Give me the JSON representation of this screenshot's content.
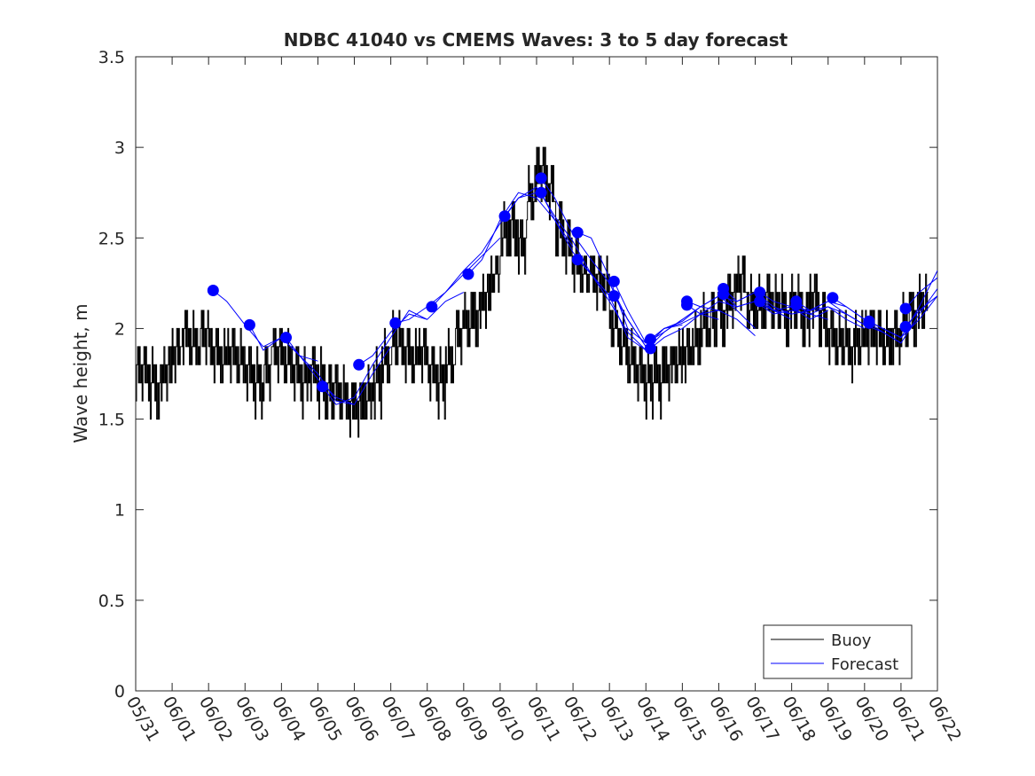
{
  "chart_data": {
    "type": "line",
    "title": "NDBC 41040 vs CMEMS Waves: 3 to 5 day forecast",
    "ylabel": "Wave height, m",
    "xlabel": "",
    "ylim": [
      0,
      3.5
    ],
    "yticks": [
      "0",
      "0.5",
      "1",
      "1.5",
      "2",
      "2.5",
      "3",
      "3.5"
    ],
    "xticks": [
      "05/31",
      "06/01",
      "06/02",
      "06/03",
      "06/04",
      "06/05",
      "06/06",
      "06/07",
      "06/08",
      "06/09",
      "06/10",
      "06/11",
      "06/12",
      "06/13",
      "06/14",
      "06/15",
      "06/16",
      "06/17",
      "06/18",
      "06/19",
      "06/20",
      "06/21",
      "06/22"
    ],
    "x_unit": "date (MM/DD), daily ticks",
    "grid": false,
    "legend": {
      "position": "bottom-right",
      "entries": [
        "Buoy",
        "Forecast"
      ]
    },
    "colors": {
      "Buoy": "#000000",
      "Forecast": "#0000ff"
    },
    "series": [
      {
        "name": "Buoy",
        "x": [
          "05/31 00:00",
          "05/31 06:00",
          "05/31 12:00",
          "05/31 18:00",
          "06/01 00:00",
          "06/01 06:00",
          "06/01 12:00",
          "06/01 18:00",
          "06/02 00:00",
          "06/02 06:00",
          "06/02 12:00",
          "06/02 18:00",
          "06/03 00:00",
          "06/03 06:00",
          "06/03 12:00",
          "06/03 18:00",
          "06/04 00:00",
          "06/04 06:00",
          "06/04 12:00",
          "06/04 18:00",
          "06/05 00:00",
          "06/05 06:00",
          "06/05 12:00",
          "06/05 18:00",
          "06/06 00:00",
          "06/06 06:00",
          "06/06 12:00",
          "06/06 18:00",
          "06/07 00:00",
          "06/07 06:00",
          "06/07 12:00",
          "06/07 18:00",
          "06/08 00:00",
          "06/08 06:00",
          "06/08 12:00",
          "06/08 18:00",
          "06/09 00:00",
          "06/09 06:00",
          "06/09 12:00",
          "06/09 18:00",
          "06/10 00:00",
          "06/10 06:00",
          "06/10 12:00",
          "06/10 18:00",
          "06/11 00:00",
          "06/11 06:00",
          "06/11 12:00",
          "06/11 18:00",
          "06/12 00:00",
          "06/12 06:00",
          "06/12 12:00",
          "06/12 18:00",
          "06/13 00:00",
          "06/13 06:00",
          "06/13 12:00",
          "06/13 18:00",
          "06/14 00:00",
          "06/14 06:00",
          "06/14 12:00",
          "06/14 18:00",
          "06/15 00:00",
          "06/15 06:00",
          "06/15 12:00",
          "06/15 18:00",
          "06/16 00:00",
          "06/16 06:00",
          "06/16 12:00",
          "06/16 18:00",
          "06/17 00:00",
          "06/17 06:00",
          "06/17 12:00",
          "06/17 18:00",
          "06/18 00:00",
          "06/18 06:00",
          "06/18 12:00",
          "06/18 18:00",
          "06/19 00:00",
          "06/19 06:00",
          "06/19 12:00",
          "06/19 18:00",
          "06/20 00:00",
          "06/20 06:00",
          "06/20 12:00",
          "06/20 18:00",
          "06/21 00:00",
          "06/21 06:00",
          "06/21 12:00"
        ],
        "values": [
          1.75,
          1.7,
          1.65,
          1.75,
          1.85,
          1.95,
          1.9,
          1.95,
          1.85,
          1.8,
          1.85,
          1.8,
          1.75,
          1.7,
          1.75,
          1.85,
          1.8,
          1.75,
          1.7,
          1.75,
          1.7,
          1.65,
          1.6,
          1.55,
          1.55,
          1.6,
          1.7,
          1.8,
          1.9,
          1.85,
          1.8,
          1.85,
          1.75,
          1.7,
          1.8,
          1.95,
          2.0,
          2.05,
          2.15,
          2.3,
          2.5,
          2.55,
          2.45,
          2.7,
          2.85,
          2.75,
          2.55,
          2.45,
          2.35,
          2.3,
          2.25,
          2.2,
          2.0,
          1.9,
          1.8,
          1.75,
          1.7,
          1.7,
          1.75,
          1.8,
          1.85,
          1.9,
          2.0,
          2.05,
          2.05,
          2.15,
          2.25,
          2.1,
          2.1,
          2.15,
          2.1,
          2.05,
          2.1,
          2.05,
          2.15,
          2.05,
          1.95,
          1.9,
          1.85,
          1.9,
          1.95,
          1.95,
          1.9,
          1.95,
          2.0,
          2.05,
          2.1
        ]
      },
      {
        "name": "Forecast",
        "runs": [
          {
            "x": [
              "06/02 03:00",
              "06/02 12:00",
              "06/03 00:00",
              "06/03 12:00",
              "06/04 00:00",
              "06/04 12:00",
              "06/05 00:00"
            ],
            "values": [
              2.21,
              2.15,
              2.02,
              1.9,
              1.95,
              1.85,
              1.82
            ]
          },
          {
            "x": [
              "06/03 03:00",
              "06/03 12:00",
              "06/04 00:00",
              "06/04 12:00",
              "06/05 00:00",
              "06/05 12:00",
              "06/06 00:00"
            ],
            "values": [
              2.02,
              1.88,
              1.95,
              1.85,
              1.72,
              1.62,
              1.58
            ]
          },
          {
            "x": [
              "06/04 03:00",
              "06/04 12:00",
              "06/05 00:00",
              "06/05 12:00",
              "06/06 00:00",
              "06/06 12:00",
              "06/07 00:00"
            ],
            "values": [
              1.95,
              1.85,
              1.75,
              1.6,
              1.58,
              1.75,
              1.9
            ]
          },
          {
            "x": [
              "06/05 03:00",
              "06/05 12:00",
              "06/06 00:00",
              "06/06 12:00",
              "06/07 00:00",
              "06/07 12:00",
              "06/08 00:00"
            ],
            "values": [
              1.68,
              1.58,
              1.62,
              1.8,
              1.95,
              2.1,
              2.05
            ]
          },
          {
            "x": [
              "06/06 03:00",
              "06/06 12:00",
              "06/07 00:00",
              "06/07 12:00",
              "06/08 00:00",
              "06/08 12:00",
              "06/09 00:00"
            ],
            "values": [
              1.8,
              1.85,
              1.98,
              2.08,
              2.05,
              2.15,
              2.2
            ]
          },
          {
            "x": [
              "06/07 03:00",
              "06/07 12:00",
              "06/08 00:00",
              "06/08 12:00",
              "06/09 00:00",
              "06/09 12:00",
              "06/10 00:00"
            ],
            "values": [
              2.03,
              2.05,
              2.12,
              2.2,
              2.3,
              2.4,
              2.5
            ]
          },
          {
            "x": [
              "06/08 03:00",
              "06/08 12:00",
              "06/09 00:00",
              "06/09 12:00",
              "06/10 00:00",
              "06/10 12:00",
              "06/11 00:00"
            ],
            "values": [
              2.12,
              2.2,
              2.32,
              2.42,
              2.58,
              2.72,
              2.75
            ]
          },
          {
            "x": [
              "06/09 03:00",
              "06/09 12:00",
              "06/10 00:00",
              "06/10 12:00",
              "06/11 00:00",
              "06/11 12:00",
              "06/12 00:00"
            ],
            "values": [
              2.3,
              2.38,
              2.6,
              2.75,
              2.72,
              2.6,
              2.45
            ]
          },
          {
            "x": [
              "06/10 03:00",
              "06/10 12:00",
              "06/11 00:00",
              "06/11 12:00",
              "06/12 00:00",
              "06/12 12:00",
              "06/13 00:00"
            ],
            "values": [
              2.62,
              2.72,
              2.78,
              2.62,
              2.48,
              2.3,
              2.18
            ]
          },
          {
            "x": [
              "06/11 03:00",
              "06/11 12:00",
              "06/12 00:00",
              "06/12 12:00",
              "06/13 00:00",
              "06/13 12:00",
              "06/14 00:00"
            ],
            "values": [
              2.83,
              2.72,
              2.52,
              2.38,
              2.25,
              2.05,
              1.9
            ]
          },
          {
            "x": [
              "06/11 03:00",
              "06/11 12:00",
              "06/12 00:00",
              "06/12 12:00",
              "06/13 00:00",
              "06/13 12:00",
              "06/14 00:00"
            ],
            "values": [
              2.75,
              2.6,
              2.42,
              2.3,
              2.15,
              1.98,
              1.88
            ]
          },
          {
            "x": [
              "06/12 03:00",
              "06/12 12:00",
              "06/13 00:00",
              "06/13 12:00",
              "06/14 00:00",
              "06/14 12:00",
              "06/15 00:00"
            ],
            "values": [
              2.53,
              2.5,
              2.28,
              2.0,
              1.92,
              2.0,
              2.02
            ]
          },
          {
            "x": [
              "06/12 03:00",
              "06/12 12:00",
              "06/13 00:00",
              "06/13 12:00",
              "06/14 00:00",
              "06/14 12:00",
              "06/15 00:00"
            ],
            "values": [
              2.38,
              2.3,
              2.18,
              1.95,
              1.88,
              1.98,
              2.05
            ]
          },
          {
            "x": [
              "06/13 03:00",
              "06/13 12:00",
              "06/14 00:00",
              "06/14 12:00",
              "06/15 00:00",
              "06/15 12:00",
              "06/16 00:00"
            ],
            "values": [
              2.26,
              2.1,
              1.92,
              1.98,
              2.05,
              2.12,
              2.1
            ]
          },
          {
            "x": [
              "06/13 03:00",
              "06/13 12:00",
              "06/14 00:00",
              "06/14 12:00",
              "06/15 00:00",
              "06/15 12:00",
              "06/16 00:00"
            ],
            "values": [
              2.18,
              2.05,
              1.9,
              2.0,
              2.03,
              2.08,
              2.05
            ]
          },
          {
            "x": [
              "06/14 03:00",
              "06/14 12:00",
              "06/15 00:00",
              "06/15 12:00",
              "06/16 00:00",
              "06/16 12:00",
              "06/17 00:00"
            ],
            "values": [
              1.94,
              2.0,
              2.04,
              2.12,
              2.18,
              2.1,
              2.0
            ]
          },
          {
            "x": [
              "06/14 03:00",
              "06/14 12:00",
              "06/15 00:00",
              "06/15 12:00",
              "06/16 00:00",
              "06/16 12:00",
              "06/17 00:00"
            ],
            "values": [
              1.89,
              1.95,
              2.0,
              2.08,
              2.1,
              2.05,
              1.96
            ]
          },
          {
            "x": [
              "06/15 03:00",
              "06/15 12:00",
              "06/16 00:00",
              "06/16 12:00",
              "06/17 00:00",
              "06/17 12:00",
              "06/18 00:00"
            ],
            "values": [
              2.15,
              2.12,
              2.18,
              2.15,
              2.2,
              2.12,
              2.08
            ]
          },
          {
            "x": [
              "06/15 03:00",
              "06/15 12:00",
              "06/16 00:00",
              "06/16 12:00",
              "06/17 00:00",
              "06/17 12:00",
              "06/18 00:00"
            ],
            "values": [
              2.13,
              2.08,
              2.15,
              2.12,
              2.15,
              2.1,
              2.05
            ]
          },
          {
            "x": [
              "06/16 03:00",
              "06/16 12:00",
              "06/17 00:00",
              "06/17 12:00",
              "06/18 00:00",
              "06/18 12:00",
              "06/19 00:00"
            ],
            "values": [
              2.22,
              2.15,
              2.2,
              2.1,
              2.12,
              2.05,
              2.1
            ]
          },
          {
            "x": [
              "06/16 03:00",
              "06/16 12:00",
              "06/17 00:00",
              "06/17 12:00",
              "06/18 00:00",
              "06/18 12:00",
              "06/19 00:00"
            ],
            "values": [
              2.19,
              2.12,
              2.15,
              2.08,
              2.1,
              2.08,
              2.05
            ]
          },
          {
            "x": [
              "06/17 03:00",
              "06/17 12:00",
              "06/18 00:00",
              "06/18 12:00",
              "06/19 00:00",
              "06/19 12:00",
              "06/20 00:00"
            ],
            "values": [
              2.2,
              2.15,
              2.12,
              2.1,
              2.15,
              2.08,
              2.02
            ]
          },
          {
            "x": [
              "06/17 03:00",
              "06/17 12:00",
              "06/18 00:00",
              "06/18 12:00",
              "06/19 00:00",
              "06/19 12:00",
              "06/20 00:00"
            ],
            "values": [
              2.15,
              2.1,
              2.08,
              2.1,
              2.12,
              2.05,
              2.0
            ]
          },
          {
            "x": [
              "06/18 03:00",
              "06/18 12:00",
              "06/19 00:00",
              "06/19 12:00",
              "06/20 00:00",
              "06/20 12:00",
              "06/21 00:00"
            ],
            "values": [
              2.15,
              2.1,
              2.15,
              2.12,
              2.05,
              2.0,
              1.95
            ]
          },
          {
            "x": [
              "06/18 03:00",
              "06/18 12:00",
              "06/19 00:00",
              "06/19 12:00",
              "06/20 00:00",
              "06/20 12:00",
              "06/21 00:00"
            ],
            "values": [
              2.13,
              2.08,
              2.12,
              2.08,
              2.02,
              1.98,
              1.92
            ]
          },
          {
            "x": [
              "06/19 03:00",
              "06/19 12:00",
              "06/20 00:00",
              "06/20 12:00",
              "06/21 00:00",
              "06/21 12:00",
              "06/22 00:00"
            ],
            "values": [
              2.17,
              2.12,
              2.05,
              2.0,
              1.95,
              2.05,
              2.18
            ]
          },
          {
            "x": [
              "06/20 03:00",
              "06/20 12:00",
              "06/21 00:00",
              "06/21 12:00",
              "06/22 00:00"
            ],
            "values": [
              2.04,
              2.0,
              1.95,
              2.12,
              2.32
            ]
          },
          {
            "x": [
              "06/20 03:00",
              "06/20 12:00",
              "06/21 00:00",
              "06/21 12:00",
              "06/22 00:00"
            ],
            "values": [
              2.03,
              1.98,
              1.92,
              2.08,
              2.22
            ]
          },
          {
            "x": [
              "06/21 03:00",
              "06/21 12:00",
              "06/22 00:00"
            ],
            "values": [
              2.11,
              2.2,
              2.28
            ]
          },
          {
            "x": [
              "06/21 03:00",
              "06/21 12:00",
              "06/22 00:00"
            ],
            "values": [
              2.01,
              2.1,
              2.18
            ]
          }
        ]
      }
    ]
  }
}
